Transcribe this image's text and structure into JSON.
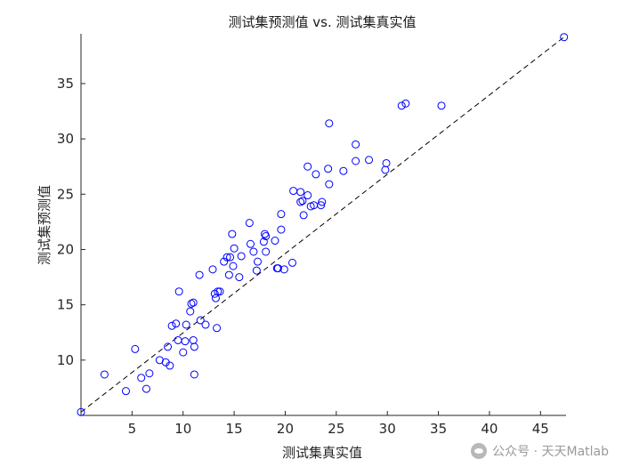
{
  "chart_data": {
    "type": "scatter",
    "title": "测试集预测值 vs. 测试集真实值",
    "xlabel": "测试集真实值",
    "ylabel": "测试集预测值",
    "xlim": [
      0,
      47.5
    ],
    "ylim": [
      5,
      39.5
    ],
    "xticks": [
      5,
      10,
      15,
      20,
      25,
      30,
      35,
      40,
      45
    ],
    "yticks": [
      10,
      15,
      20,
      25,
      30,
      35
    ],
    "marker": "open-circle",
    "marker_color": "#0000ff",
    "reference_line": {
      "style": "dashed",
      "color": "#000000",
      "from": [
        0,
        5.3
      ],
      "to": [
        47.3,
        39.2
      ]
    },
    "grid": false,
    "legend": "none",
    "points": [
      [
        0.0,
        5.3
      ],
      [
        2.3,
        8.7
      ],
      [
        4.4,
        7.2
      ],
      [
        5.3,
        11.0
      ],
      [
        5.9,
        8.4
      ],
      [
        6.4,
        7.4
      ],
      [
        6.7,
        8.8
      ],
      [
        7.7,
        10.0
      ],
      [
        8.3,
        9.8
      ],
      [
        8.5,
        11.2
      ],
      [
        8.7,
        9.5
      ],
      [
        8.9,
        13.1
      ],
      [
        9.3,
        13.3
      ],
      [
        9.5,
        11.8
      ],
      [
        9.6,
        16.2
      ],
      [
        10.0,
        10.7
      ],
      [
        10.2,
        11.7
      ],
      [
        10.3,
        13.2
      ],
      [
        10.7,
        14.4
      ],
      [
        10.8,
        15.1
      ],
      [
        11.0,
        15.2
      ],
      [
        11.0,
        11.8
      ],
      [
        11.1,
        11.2
      ],
      [
        11.1,
        8.7
      ],
      [
        11.6,
        17.7
      ],
      [
        11.7,
        13.6
      ],
      [
        12.2,
        13.2
      ],
      [
        12.9,
        18.2
      ],
      [
        13.1,
        16.0
      ],
      [
        13.2,
        15.6
      ],
      [
        13.3,
        12.9
      ],
      [
        13.4,
        16.2
      ],
      [
        13.6,
        16.2
      ],
      [
        14.0,
        18.9
      ],
      [
        14.3,
        19.3
      ],
      [
        14.5,
        17.7
      ],
      [
        14.6,
        19.3
      ],
      [
        14.8,
        21.4
      ],
      [
        14.9,
        18.5
      ],
      [
        15.0,
        20.1
      ],
      [
        15.5,
        17.5
      ],
      [
        15.7,
        19.4
      ],
      [
        16.5,
        22.4
      ],
      [
        16.6,
        20.5
      ],
      [
        16.9,
        19.8
      ],
      [
        17.2,
        18.1
      ],
      [
        17.3,
        18.9
      ],
      [
        17.9,
        20.7
      ],
      [
        18.0,
        21.4
      ],
      [
        18.1,
        21.2
      ],
      [
        18.1,
        19.8
      ],
      [
        19.0,
        20.8
      ],
      [
        19.2,
        18.3
      ],
      [
        19.3,
        18.3
      ],
      [
        19.6,
        23.2
      ],
      [
        19.6,
        21.8
      ],
      [
        19.9,
        18.2
      ],
      [
        20.7,
        18.8
      ],
      [
        20.8,
        25.3
      ],
      [
        21.5,
        25.2
      ],
      [
        21.5,
        24.3
      ],
      [
        21.7,
        24.4
      ],
      [
        21.8,
        23.1
      ],
      [
        22.2,
        27.5
      ],
      [
        22.2,
        24.9
      ],
      [
        22.5,
        23.9
      ],
      [
        22.8,
        24.0
      ],
      [
        23.0,
        26.8
      ],
      [
        23.5,
        24.0
      ],
      [
        23.6,
        24.3
      ],
      [
        24.2,
        27.3
      ],
      [
        24.3,
        31.4
      ],
      [
        24.3,
        25.9
      ],
      [
        25.7,
        27.1
      ],
      [
        26.9,
        29.5
      ],
      [
        26.9,
        28.0
      ],
      [
        28.2,
        28.1
      ],
      [
        29.8,
        27.2
      ],
      [
        29.9,
        27.8
      ],
      [
        31.4,
        33.0
      ],
      [
        31.8,
        33.2
      ],
      [
        35.3,
        33.0
      ],
      [
        47.3,
        39.2
      ]
    ]
  },
  "watermark": {
    "text": "公众号 · 天天Matlab",
    "icon": "wechat-icon"
  }
}
